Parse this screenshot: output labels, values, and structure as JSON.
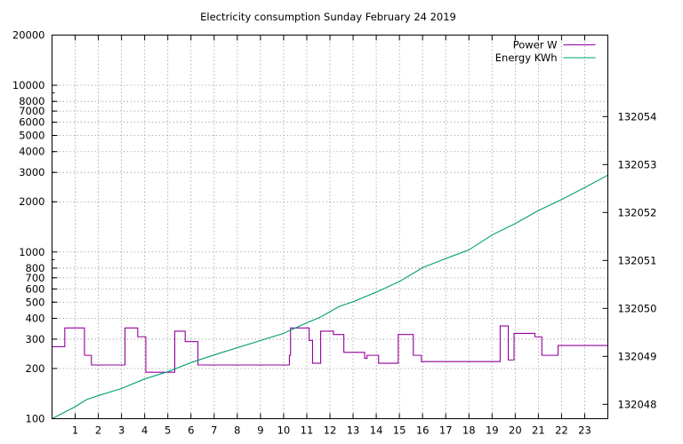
{
  "chart_data": {
    "type": "line",
    "title": "Electricity consumption Sunday February 24 2019",
    "xlim": [
      0,
      24
    ],
    "x_ticks": [
      "1",
      "2",
      "3",
      "4",
      "5",
      "6",
      "7",
      "8",
      "9",
      "10",
      "11",
      "12",
      "13",
      "14",
      "15",
      "16",
      "17",
      "18",
      "19",
      "20",
      "21",
      "22",
      "23"
    ],
    "y1": {
      "scale": "log",
      "ylim": [
        100,
        20000
      ],
      "ticks": [
        "100",
        "200",
        "300",
        "400",
        "500",
        "600",
        "700",
        "800",
        "1000",
        "2000",
        "3000",
        "4000",
        "5000",
        "6000",
        "7000",
        "8000",
        "10000",
        "20000"
      ]
    },
    "y2": {
      "ylim": [
        132047.7,
        132055.7
      ],
      "ticks": [
        "132048",
        "132049",
        "132050",
        "132051",
        "132052",
        "132053",
        "132054"
      ]
    },
    "grid": true,
    "legend_position": "top-right",
    "series": [
      {
        "name": "Power W",
        "color": "#94009e",
        "axis": "y1",
        "step": true,
        "x": [
          0,
          0.55,
          1.4,
          1.7,
          3.15,
          3.7,
          4.05,
          5.3,
          5.75,
          6.3,
          10.25,
          10.3,
          11.1,
          11.25,
          11.6,
          12.15,
          12.6,
          13.5,
          13.6,
          14.1,
          14.95,
          15.6,
          15.95,
          18.3,
          19.35,
          19.7,
          19.95,
          20.85,
          21.15,
          21.85,
          24
        ],
        "y": [
          270,
          350,
          240,
          210,
          350,
          310,
          190,
          335,
          290,
          210,
          240,
          350,
          295,
          215,
          335,
          320,
          250,
          230,
          240,
          215,
          320,
          240,
          220,
          220,
          360,
          225,
          325,
          310,
          240,
          275,
          275
        ]
      },
      {
        "name": "Energy KWh",
        "color": "#009e73",
        "axis": "y2",
        "x": [
          0,
          1,
          1.5,
          2,
          3,
          4,
          5,
          6,
          7,
          8,
          9,
          10,
          11,
          11.6,
          12.4,
          13,
          14,
          15,
          16,
          17,
          18,
          19,
          20,
          21,
          22,
          23,
          24
        ],
        "y": [
          132047.7,
          132047.95,
          132048.1,
          132048.18,
          132048.33,
          132048.53,
          132048.68,
          132048.87,
          132049.03,
          132049.18,
          132049.33,
          132049.48,
          132049.7,
          132049.82,
          132050.04,
          132050.14,
          132050.34,
          132050.56,
          132050.85,
          132051.04,
          132051.22,
          132051.53,
          132051.77,
          132052.04,
          132052.27,
          132052.52,
          132052.78
        ]
      }
    ]
  }
}
